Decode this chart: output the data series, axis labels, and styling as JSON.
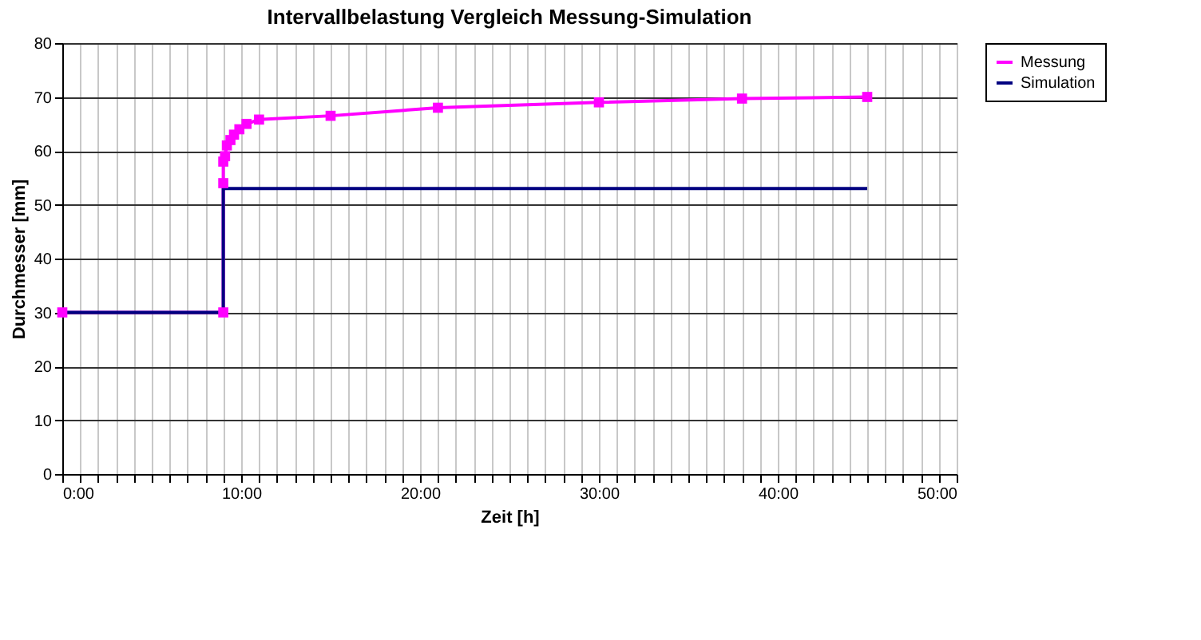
{
  "chart_data": {
    "type": "line",
    "title": "Intervallbelastung Vergleich Messung-Simulation",
    "xlabel": "Zeit [h]",
    "ylabel": "Durchmesser [mm]",
    "xlim": [
      0,
      50
    ],
    "ylim": [
      0,
      80
    ],
    "xticks": [
      {
        "value": 0,
        "label": "0:00"
      },
      {
        "value": 1,
        "label": null
      },
      {
        "value": 2,
        "label": null
      },
      {
        "value": 3,
        "label": null
      },
      {
        "value": 4,
        "label": null
      },
      {
        "value": 5,
        "label": null
      },
      {
        "value": 6,
        "label": null
      },
      {
        "value": 7,
        "label": null
      },
      {
        "value": 8,
        "label": null
      },
      {
        "value": 9,
        "label": null
      },
      {
        "value": 10,
        "label": "10:00"
      },
      {
        "value": 11,
        "label": null
      },
      {
        "value": 12,
        "label": null
      },
      {
        "value": 13,
        "label": null
      },
      {
        "value": 14,
        "label": null
      },
      {
        "value": 15,
        "label": null
      },
      {
        "value": 16,
        "label": null
      },
      {
        "value": 17,
        "label": null
      },
      {
        "value": 18,
        "label": null
      },
      {
        "value": 19,
        "label": null
      },
      {
        "value": 20,
        "label": "20:00"
      },
      {
        "value": 21,
        "label": null
      },
      {
        "value": 22,
        "label": null
      },
      {
        "value": 23,
        "label": null
      },
      {
        "value": 24,
        "label": null
      },
      {
        "value": 25,
        "label": null
      },
      {
        "value": 26,
        "label": null
      },
      {
        "value": 27,
        "label": null
      },
      {
        "value": 28,
        "label": null
      },
      {
        "value": 29,
        "label": null
      },
      {
        "value": 30,
        "label": "30:00"
      },
      {
        "value": 31,
        "label": null
      },
      {
        "value": 32,
        "label": null
      },
      {
        "value": 33,
        "label": null
      },
      {
        "value": 34,
        "label": null
      },
      {
        "value": 35,
        "label": null
      },
      {
        "value": 36,
        "label": null
      },
      {
        "value": 37,
        "label": null
      },
      {
        "value": 38,
        "label": null
      },
      {
        "value": 39,
        "label": null
      },
      {
        "value": 40,
        "label": "40:00"
      },
      {
        "value": 41,
        "label": null
      },
      {
        "value": 42,
        "label": null
      },
      {
        "value": 43,
        "label": null
      },
      {
        "value": 44,
        "label": null
      },
      {
        "value": 45,
        "label": null
      },
      {
        "value": 46,
        "label": null
      },
      {
        "value": 47,
        "label": null
      },
      {
        "value": 48,
        "label": null
      },
      {
        "value": 49,
        "label": null
      },
      {
        "value": 50,
        "label": "50:00"
      }
    ],
    "yticks": [
      0,
      10,
      20,
      30,
      40,
      50,
      60,
      70,
      80
    ],
    "grid": true,
    "legend": "right",
    "line_style": "solid",
    "series": [
      {
        "name": "Messung",
        "color": "#ff00ff",
        "marker": "square",
        "x": [
          0,
          9,
          9,
          9,
          9.1,
          9.2,
          9.4,
          9.6,
          9.9,
          10.3,
          11,
          15,
          21,
          30,
          38,
          45
        ],
        "values": [
          30,
          30,
          54,
          58,
          59,
          61,
          62,
          63,
          64,
          65,
          65.8,
          66.5,
          68,
          69,
          69.7,
          70
        ]
      },
      {
        "name": "Simulation",
        "color": "#000080",
        "marker": "none",
        "x": [
          0,
          9,
          9,
          45
        ],
        "values": [
          30,
          30,
          53,
          53
        ]
      }
    ]
  }
}
